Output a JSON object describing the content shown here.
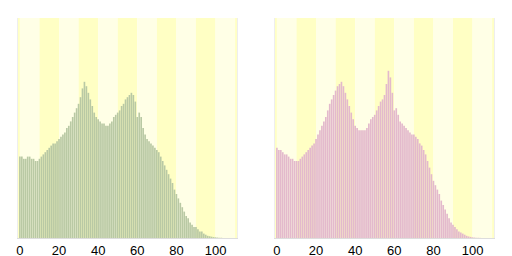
{
  "chart_data": [
    {
      "type": "bar",
      "x": [
        0,
        1,
        2,
        3,
        4,
        5,
        6,
        7,
        8,
        9,
        10,
        11,
        12,
        13,
        14,
        15,
        16,
        17,
        18,
        19,
        20,
        21,
        22,
        23,
        24,
        25,
        26,
        27,
        28,
        29,
        30,
        31,
        32,
        33,
        34,
        35,
        36,
        37,
        38,
        39,
        40,
        41,
        42,
        43,
        44,
        45,
        46,
        47,
        48,
        49,
        50,
        51,
        52,
        53,
        54,
        55,
        56,
        57,
        58,
        59,
        60,
        61,
        62,
        63,
        64,
        65,
        66,
        67,
        68,
        69,
        70,
        71,
        72,
        73,
        74,
        75,
        76,
        77,
        78,
        79,
        80,
        81,
        82,
        83,
        84,
        85,
        86,
        87,
        88,
        89,
        90,
        91,
        92,
        93,
        94,
        95,
        96,
        97,
        98,
        99,
        100,
        101,
        102,
        103,
        104,
        105
      ],
      "values": [
        37,
        37,
        36,
        36,
        37,
        37,
        36,
        36,
        35,
        35,
        36,
        37,
        38,
        39,
        40,
        41,
        42,
        43,
        43,
        44,
        45,
        46,
        47,
        48,
        50,
        51,
        53,
        55,
        57,
        59,
        61,
        64,
        68,
        71,
        69,
        66,
        63,
        60,
        57,
        55,
        54,
        53,
        52,
        52,
        51,
        51,
        52,
        53,
        55,
        56,
        57,
        58,
        60,
        61,
        63,
        64,
        65,
        66,
        65,
        62,
        55,
        57,
        55,
        50,
        47,
        45,
        44,
        43,
        42,
        41,
        40,
        39,
        37,
        35,
        33,
        31,
        29,
        27,
        25,
        22,
        20,
        18,
        16,
        14,
        12,
        10,
        9,
        7,
        6,
        5,
        5,
        4,
        3,
        3,
        2,
        1.5,
        1,
        0.8,
        0.6,
        0.4,
        0.3,
        0.2,
        0.1,
        0.1,
        0,
        0
      ],
      "color": "#b9c9a4",
      "xlim": [
        -1,
        111
      ],
      "xticks": [
        0,
        20,
        40,
        60,
        80,
        100
      ],
      "ylim": [
        0,
        100
      ],
      "tick_labels": "x"
    },
    {
      "type": "bar",
      "x": [
        0,
        1,
        2,
        3,
        4,
        5,
        6,
        7,
        8,
        9,
        10,
        11,
        12,
        13,
        14,
        15,
        16,
        17,
        18,
        19,
        20,
        21,
        22,
        23,
        24,
        25,
        26,
        27,
        28,
        29,
        30,
        31,
        32,
        33,
        34,
        35,
        36,
        37,
        38,
        39,
        40,
        41,
        42,
        43,
        44,
        45,
        46,
        47,
        48,
        49,
        50,
        51,
        52,
        53,
        54,
        55,
        56,
        57,
        58,
        59,
        60,
        61,
        62,
        63,
        64,
        65,
        66,
        67,
        68,
        69,
        70,
        71,
        72,
        73,
        74,
        75,
        76,
        77,
        78,
        79,
        80,
        81,
        82,
        83,
        84,
        85,
        86,
        87,
        88,
        89,
        90,
        91,
        92,
        93,
        94,
        95,
        96,
        97,
        98,
        99,
        100,
        101,
        102,
        103,
        104,
        105
      ],
      "values": [
        41,
        40,
        40,
        39,
        38,
        38,
        37,
        36,
        36,
        35,
        35,
        35,
        36,
        37,
        38,
        39,
        40,
        41,
        42,
        43,
        45,
        47,
        49,
        51,
        53,
        55,
        58,
        61,
        63,
        65,
        67,
        69,
        70,
        71,
        69,
        66,
        63,
        60,
        57,
        54,
        51,
        50,
        49,
        49,
        49,
        49,
        50,
        52,
        54,
        55,
        56,
        58,
        60,
        62,
        63,
        65,
        70,
        76,
        73,
        66,
        58,
        59,
        56,
        53,
        52,
        51,
        50,
        49,
        48,
        47,
        47,
        46,
        45,
        43,
        42,
        40,
        38,
        35,
        32,
        29,
        26,
        24,
        22,
        20,
        17,
        15,
        13,
        11,
        9,
        7,
        6,
        5,
        4,
        3,
        2.5,
        2,
        1.5,
        1,
        0.7,
        0.5,
        0.3,
        0.2,
        0.1,
        0.1,
        0.05,
        0
      ],
      "color": "#e3b9cc",
      "xlim": [
        -1,
        111
      ],
      "xticks": [
        0,
        20,
        40,
        60,
        80,
        100
      ],
      "ylim": [
        0,
        100
      ],
      "tick_labels": "x"
    }
  ]
}
